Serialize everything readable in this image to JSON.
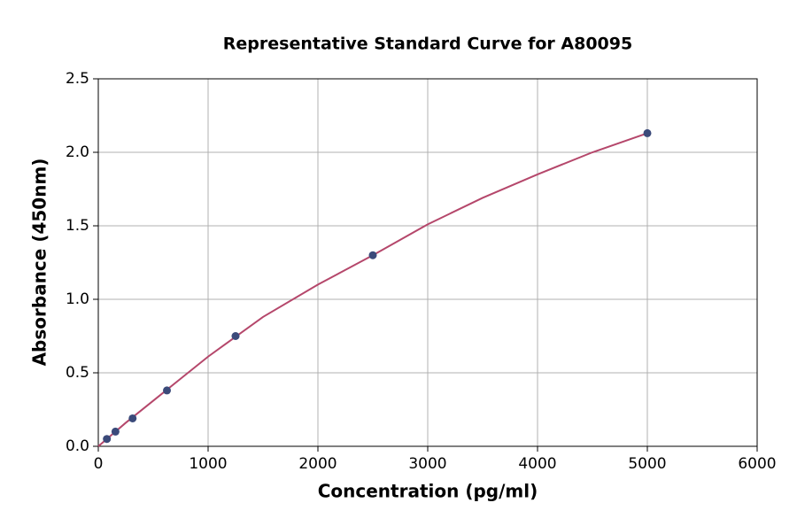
{
  "chart_data": {
    "type": "scatter",
    "title": "Representative Standard Curve for A80095",
    "x_label": "Concentration (pg/ml)",
    "y_label": "Absorbance (450nm)",
    "series": [
      {
        "type": "scatter",
        "color": "#3b4a7a",
        "x": [
          78.125,
          156.25,
          312.5,
          625,
          1250,
          2500,
          5000
        ],
        "values": [
          0.05,
          0.1,
          0.19,
          0.38,
          0.75,
          1.3,
          2.13
        ]
      },
      {
        "type": "line",
        "color": "#b5476b",
        "x": [
          0,
          250,
          500,
          750,
          1000,
          1500,
          2000,
          2500,
          3000,
          3500,
          4000,
          4500,
          5000
        ],
        "values": [
          0.0,
          0.16,
          0.31,
          0.46,
          0.61,
          0.88,
          1.1,
          1.3,
          1.51,
          1.69,
          1.85,
          2.0,
          2.13
        ]
      }
    ],
    "xlim": [
      0,
      6000
    ],
    "xticks": [
      0,
      1000,
      2000,
      3000,
      4000,
      5000,
      6000
    ],
    "ylim": [
      0,
      2.5
    ],
    "yticks": [
      {
        "value": 0,
        "label": "0.0"
      },
      0.5,
      {
        "value": 1,
        "label": "1.0"
      },
      1.5,
      {
        "value": 2,
        "label": "2.0"
      },
      2.5
    ],
    "grid": true
  }
}
